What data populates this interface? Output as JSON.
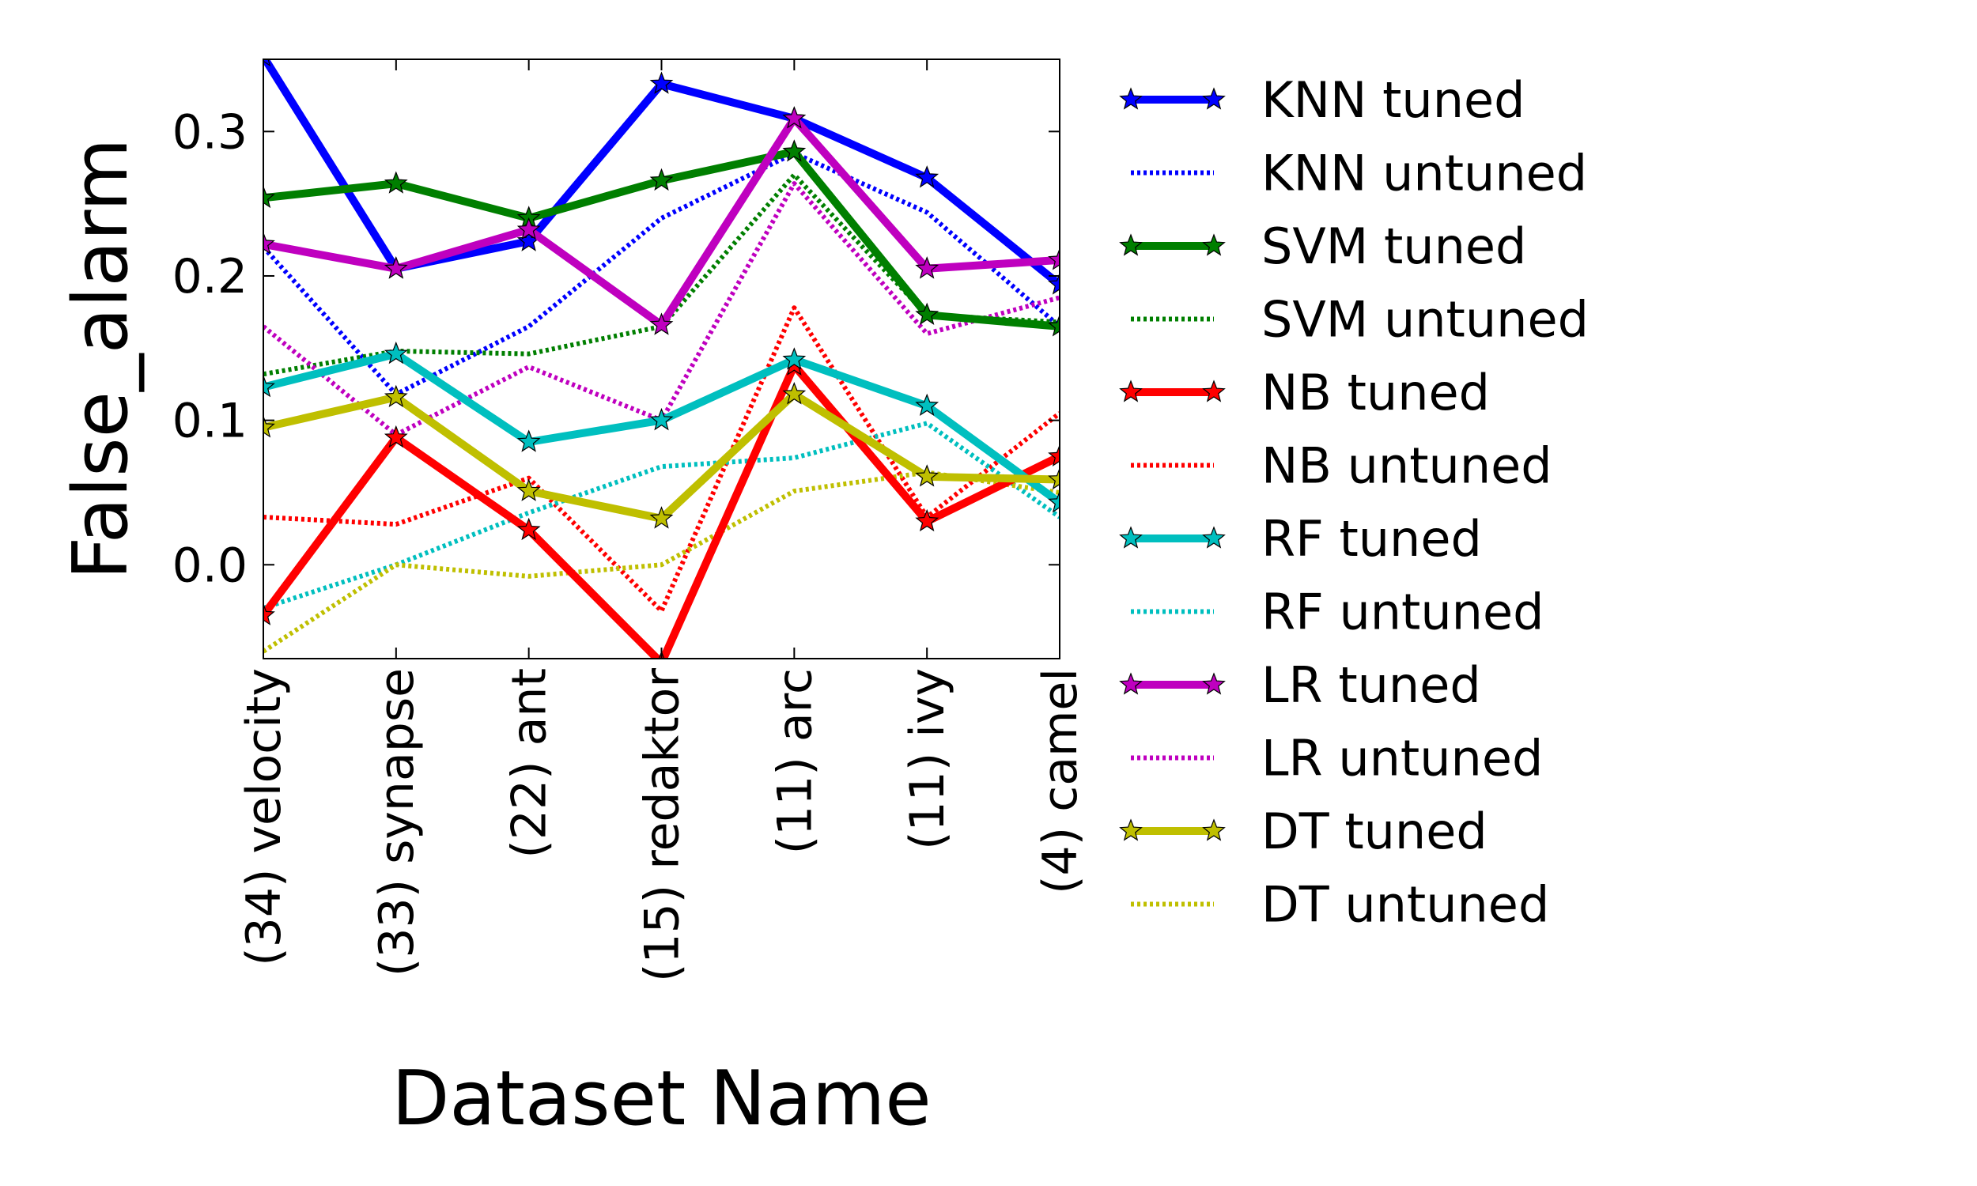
{
  "chart_data": {
    "type": "line",
    "xlabel": "Dataset Name",
    "ylabel": "False_alarm",
    "categories": [
      "(34) velocity",
      "(33) synapse",
      "(22) ant",
      "(15) redaktor",
      "(11) arc",
      "(11) ivy",
      "(4) camel"
    ],
    "ylim": [
      -0.065,
      0.35
    ],
    "yticks": [
      0.0,
      0.1,
      0.2,
      0.3
    ],
    "ytick_labels": [
      "0.0",
      "0.1",
      "0.2",
      "0.3"
    ],
    "grid": false,
    "legend_position": "outside right",
    "series": [
      {
        "name": "KNN tuned",
        "color": "#0000ff",
        "style": "solid",
        "marker": "star",
        "values": [
          0.352,
          0.205,
          0.224,
          0.333,
          0.309,
          0.268,
          0.194
        ]
      },
      {
        "name": "KNN untuned",
        "color": "#0000ff",
        "style": "dotted",
        "marker": "none",
        "values": [
          0.22,
          0.118,
          0.165,
          0.24,
          0.285,
          0.244,
          0.165
        ]
      },
      {
        "name": "SVM tuned",
        "color": "#007f00",
        "style": "solid",
        "marker": "star",
        "values": [
          0.254,
          0.264,
          0.24,
          0.266,
          0.286,
          0.173,
          0.165
        ]
      },
      {
        "name": "SVM untuned",
        "color": "#007f00",
        "style": "dotted",
        "marker": "none",
        "values": [
          0.132,
          0.148,
          0.146,
          0.165,
          0.27,
          0.173,
          0.168
        ]
      },
      {
        "name": "NB tuned",
        "color": "#ff0000",
        "style": "solid",
        "marker": "star",
        "values": [
          -0.035,
          0.088,
          0.024,
          -0.068,
          0.138,
          0.03,
          0.075
        ]
      },
      {
        "name": "NB untuned",
        "color": "#ff0000",
        "style": "dotted",
        "marker": "none",
        "values": [
          0.033,
          0.028,
          0.06,
          -0.032,
          0.178,
          0.033,
          0.105
        ]
      },
      {
        "name": "RF tuned",
        "color": "#00bfbf",
        "style": "solid",
        "marker": "star",
        "values": [
          0.123,
          0.146,
          0.085,
          0.1,
          0.142,
          0.11,
          0.043
        ]
      },
      {
        "name": "RF untuned",
        "color": "#00bfbf",
        "style": "dotted",
        "marker": "none",
        "values": [
          -0.03,
          0.0,
          0.036,
          0.068,
          0.074,
          0.098,
          0.033
        ]
      },
      {
        "name": "LR tuned",
        "color": "#bf00bf",
        "style": "solid",
        "marker": "star",
        "values": [
          0.222,
          0.205,
          0.232,
          0.166,
          0.309,
          0.205,
          0.211
        ]
      },
      {
        "name": "LR untuned",
        "color": "#bf00bf",
        "style": "dotted",
        "marker": "none",
        "values": [
          0.165,
          0.09,
          0.137,
          0.1,
          0.264,
          0.16,
          0.185
        ]
      },
      {
        "name": "DT tuned",
        "color": "#bfbf00",
        "style": "solid",
        "marker": "star",
        "values": [
          0.095,
          0.116,
          0.051,
          0.032,
          0.118,
          0.061,
          0.059
        ]
      },
      {
        "name": "DT untuned",
        "color": "#bfbf00",
        "style": "dotted",
        "marker": "none",
        "values": [
          -0.06,
          0.0,
          -0.008,
          0.0,
          0.051,
          0.064,
          0.05
        ]
      }
    ]
  }
}
